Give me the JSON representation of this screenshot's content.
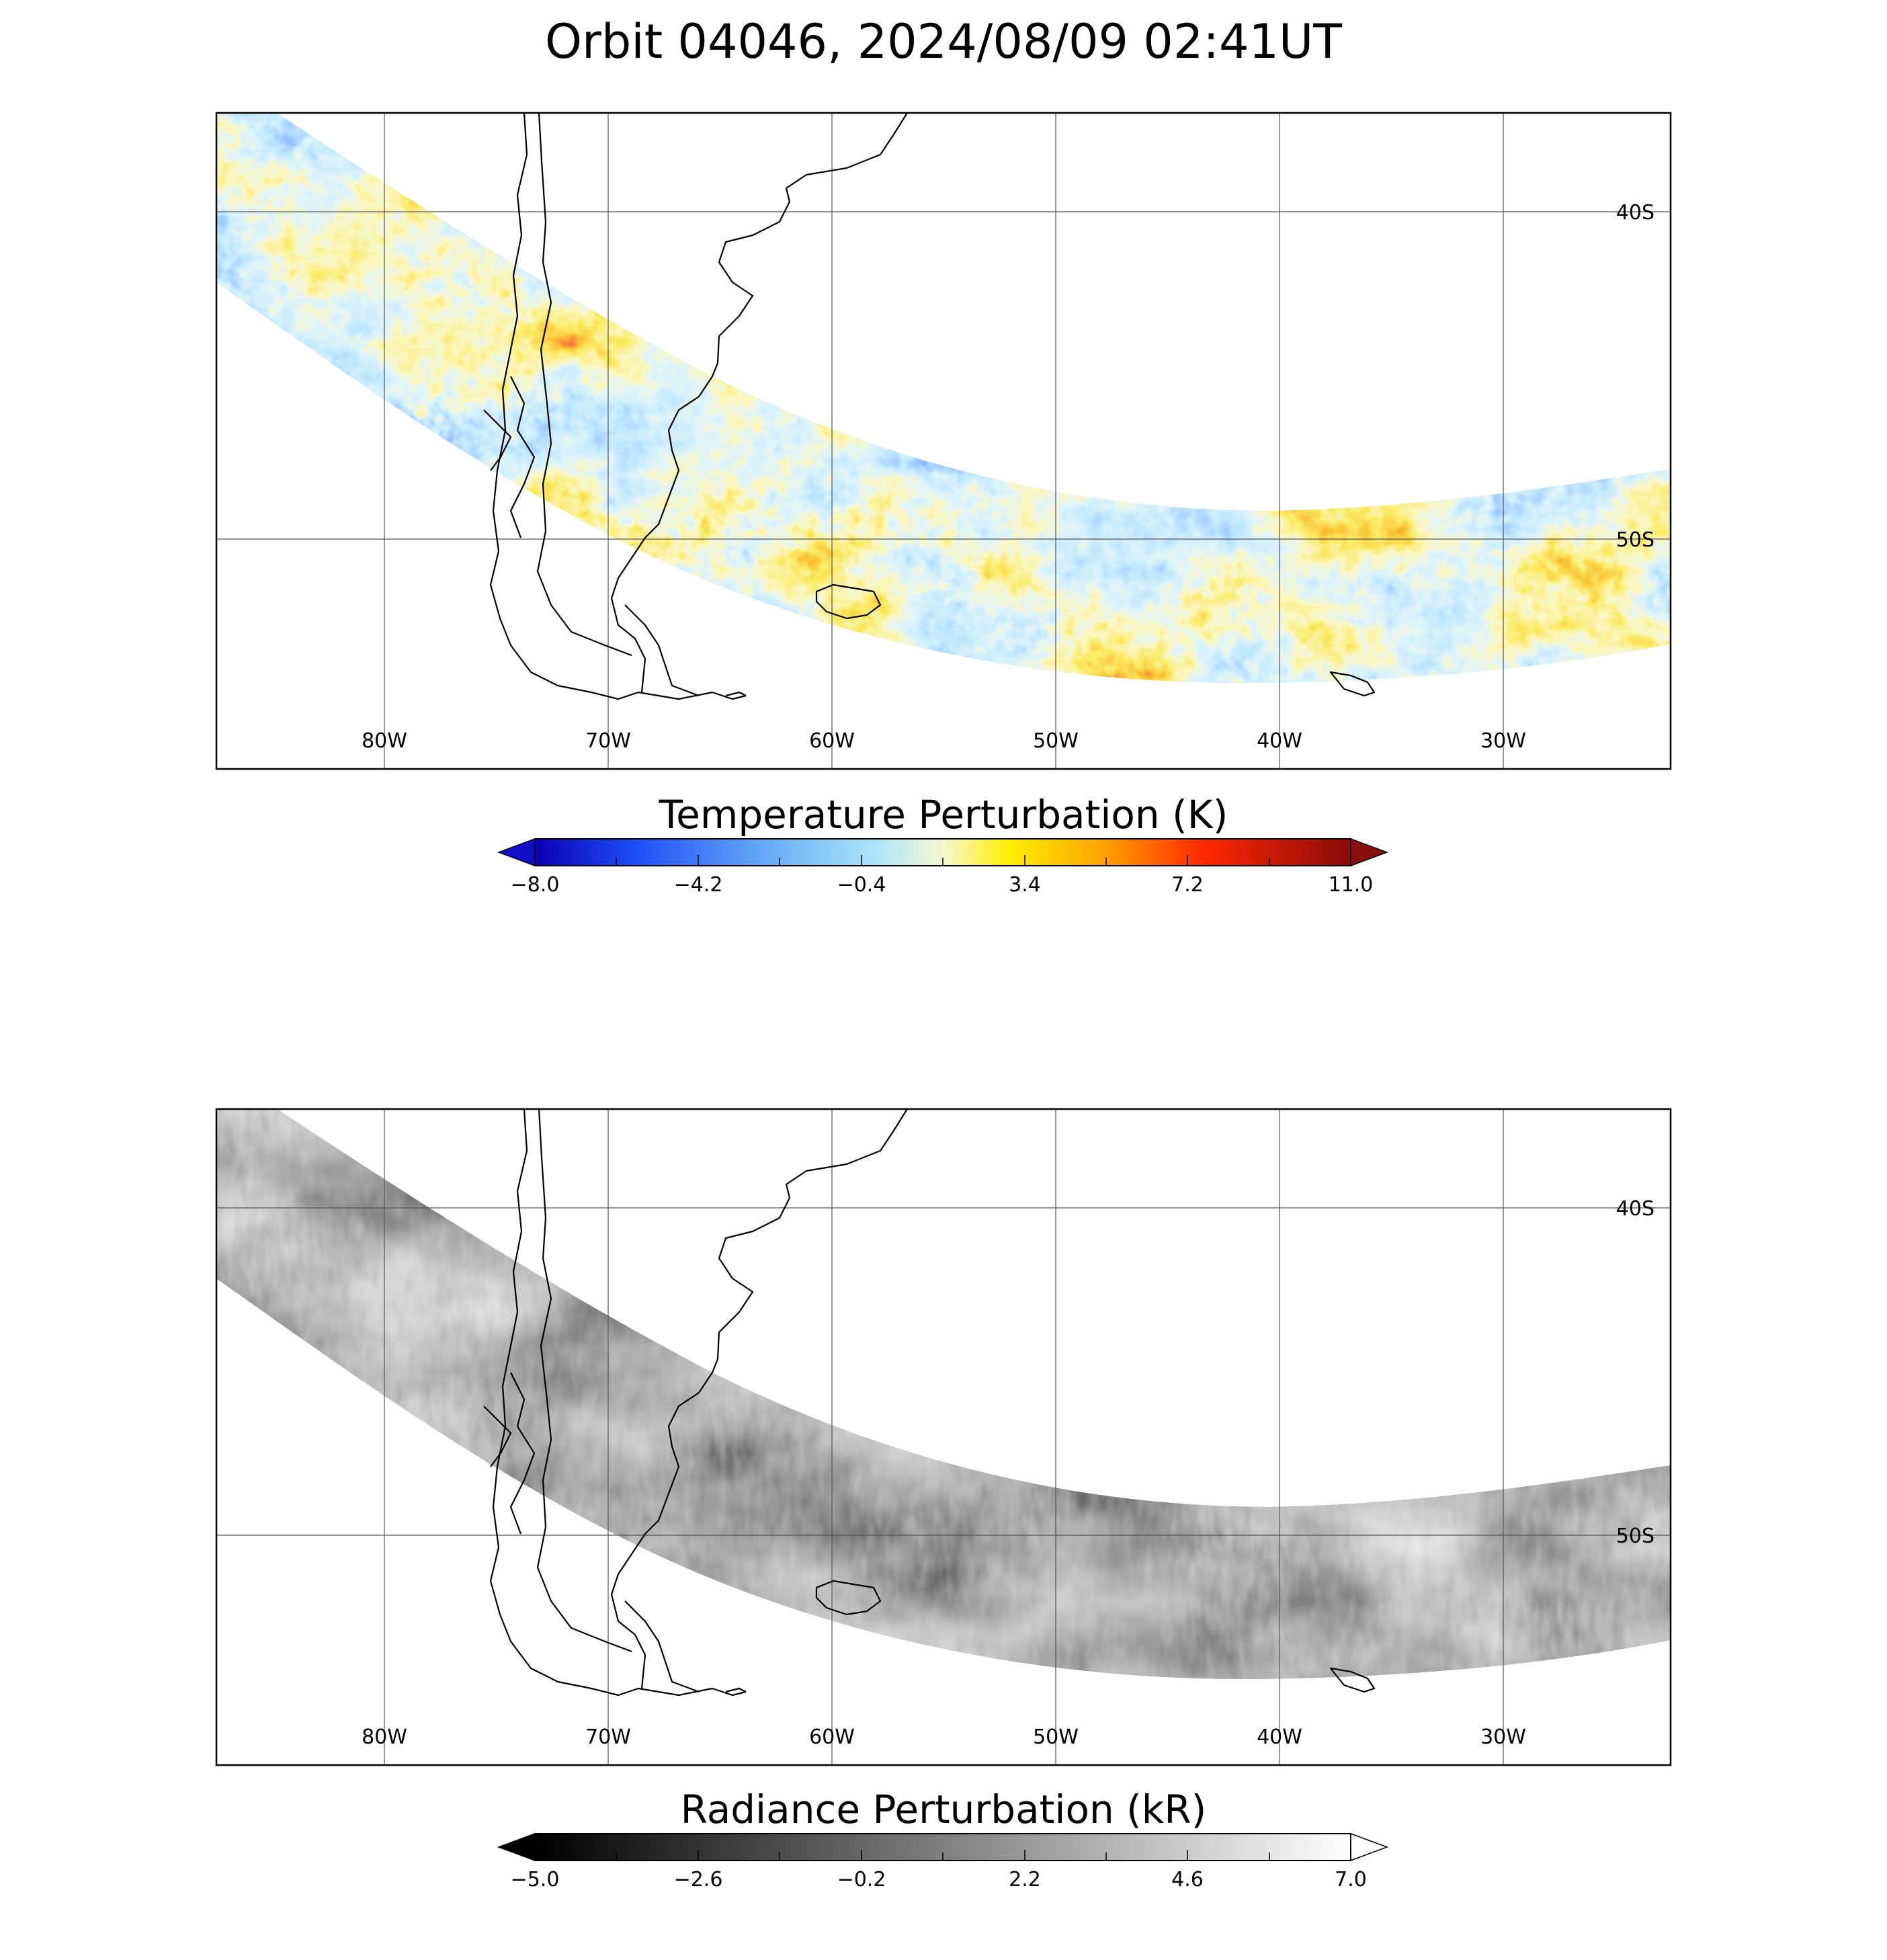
{
  "figure_title": "Orbit 04046, 2024/08/09 02:41UT",
  "panels": [
    {
      "id": "temperature",
      "colorbar": {
        "title": "Temperature Perturbation (K)",
        "ticks": [
          "−8.0",
          "−4.2",
          "−0.4",
          "3.4",
          "7.2",
          "11.0"
        ],
        "min": -8.0,
        "max": 11.0,
        "colormap": "blue-white-yellow-red",
        "low_arrow_color": "#1010c8",
        "high_arrow_color": "#8a0e0e"
      },
      "lon_ticks": [
        "80W",
        "70W",
        "60W",
        "50W",
        "40W",
        "30W"
      ],
      "lat_ticks": [
        "40S",
        "50S"
      ]
    },
    {
      "id": "radiance",
      "colorbar": {
        "title": "Radiance Perturbation (kR)",
        "ticks": [
          "−5.0",
          "−2.6",
          "−0.2",
          "2.2",
          "4.6",
          "7.0"
        ],
        "min": -5.0,
        "max": 7.0,
        "colormap": "grayscale",
        "low_arrow_color": "#000000",
        "high_arrow_color": "#ffffff"
      },
      "lon_ticks": [
        "80W",
        "70W",
        "60W",
        "50W",
        "40W",
        "30W"
      ],
      "lat_ticks": [
        "40S",
        "50S"
      ]
    }
  ]
}
